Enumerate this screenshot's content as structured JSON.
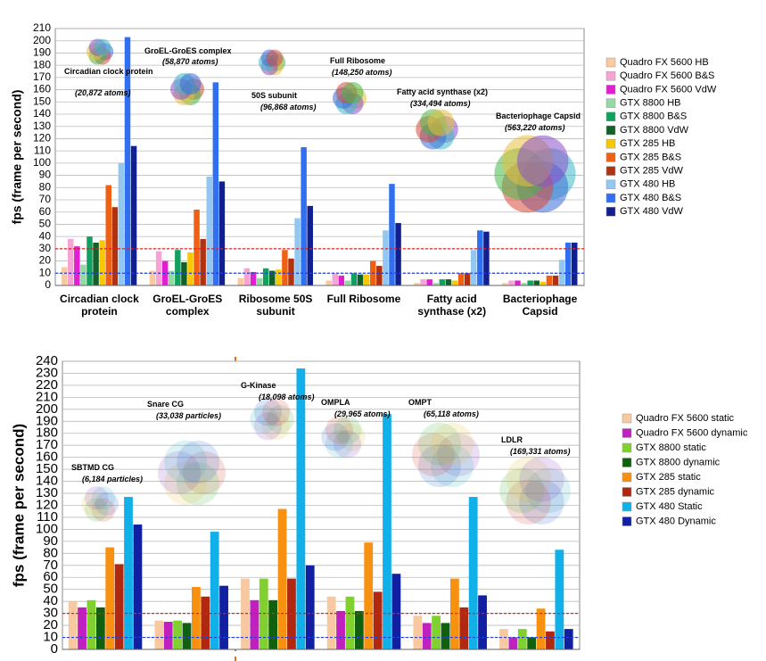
{
  "chart_data": [
    {
      "type": "bar",
      "y_label": "fps (frame per second)",
      "categories": [
        "Circadian clock protein",
        "GroEL-GroES complex",
        "Ribosome 50S subunit",
        "Full Ribosome",
        "Fatty acid synthase (x2)",
        "Bacteriophage Capsid"
      ],
      "series": [
        {
          "name": "Quadro FX 5600 HB",
          "color": "#f9c9a0",
          "values": [
            15,
            12,
            6,
            4,
            2,
            2
          ]
        },
        {
          "name": "Quadro FX 5600 B&S",
          "color": "#f7a3d3",
          "values": [
            38,
            28,
            14,
            10,
            5,
            4
          ]
        },
        {
          "name": "Quadro FX 5600 VdW",
          "color": "#e020d0",
          "values": [
            32,
            20,
            11,
            8,
            5,
            4
          ]
        },
        {
          "name": "GTX 8800 HB",
          "color": "#94d8a4",
          "values": [
            17,
            12,
            6,
            4,
            2,
            2
          ]
        },
        {
          "name": "GTX 8800 B&S",
          "color": "#12a05e",
          "values": [
            40,
            29,
            14,
            10,
            5,
            4
          ]
        },
        {
          "name": "GTX 8800 VdW",
          "color": "#12602a",
          "values": [
            35,
            19,
            12,
            9,
            5,
            4
          ]
        },
        {
          "name": "GTX 285 HB",
          "color": "#f8c800",
          "values": [
            37,
            27,
            13,
            9,
            4,
            3
          ]
        },
        {
          "name": "GTX 285 B&S",
          "color": "#f06012",
          "values": [
            82,
            62,
            29,
            20,
            10,
            8
          ]
        },
        {
          "name": "GTX 285 VdW",
          "color": "#b23210",
          "values": [
            64,
            38,
            22,
            16,
            10,
            8
          ]
        },
        {
          "name": "GTX 480 HB",
          "color": "#92c8f0",
          "values": [
            100,
            89,
            55,
            45,
            29,
            21
          ]
        },
        {
          "name": "GTX 480 B&S",
          "color": "#3070f0",
          "values": [
            203,
            166,
            113,
            83,
            45,
            35
          ]
        },
        {
          "name": "GTX 480 VdW",
          "color": "#102090",
          "values": [
            114,
            85,
            65,
            51,
            44,
            35
          ]
        }
      ],
      "ylim": [
        0,
        210
      ],
      "yticks": [
        0,
        10,
        20,
        30,
        40,
        50,
        60,
        70,
        80,
        90,
        100,
        110,
        120,
        130,
        140,
        150,
        160,
        170,
        180,
        190,
        200,
        210
      ],
      "grid": true,
      "reference_lines": [
        {
          "value": 30,
          "color": "#e02020"
        },
        {
          "value": 10,
          "color": "#2040e0"
        }
      ],
      "annotations": [
        {
          "label": "Circadian clock protein",
          "detail": "(20,872 atoms)"
        },
        {
          "label": "GroEL-GroES complex",
          "detail": "(58,870 atoms)"
        },
        {
          "label": "50S subunit",
          "detail": "(96,868 atoms)"
        },
        {
          "label": "Full Ribosome",
          "detail": "(148,250 atoms)"
        },
        {
          "label": "Fatty acid synthase (x2)",
          "detail": "(334,494 atoms)"
        },
        {
          "label": "Bacteriophage Capsid",
          "detail": "(563,220 atoms)"
        }
      ]
    },
    {
      "type": "bar",
      "y_label": "fps (frame per second)",
      "categories": [
        null,
        null,
        null,
        null,
        null,
        null
      ],
      "series": [
        {
          "name": "Quadro FX 5600 static",
          "color": "#f8c8a0",
          "values": [
            40,
            24,
            59,
            44,
            28,
            17
          ]
        },
        {
          "name": "Quadro FX 5600 dynamic",
          "color": "#c020c0",
          "values": [
            35,
            23,
            41,
            32,
            22,
            10
          ]
        },
        {
          "name": "GTX 8800 static",
          "color": "#80d030",
          "values": [
            41,
            24,
            59,
            44,
            28,
            17
          ]
        },
        {
          "name": "GTX 8800 dynamic",
          "color": "#106010",
          "values": [
            35,
            22,
            41,
            32,
            22,
            10
          ]
        },
        {
          "name": "GTX 285 static",
          "color": "#f89010",
          "values": [
            85,
            52,
            117,
            89,
            59,
            34
          ]
        },
        {
          "name": "GTX 285 dynamic",
          "color": "#b02810",
          "values": [
            71,
            44,
            59,
            48,
            35,
            15
          ]
        },
        {
          "name": "GTX 480 Static",
          "color": "#12b0e8",
          "values": [
            127,
            98,
            234,
            196,
            127,
            83
          ]
        },
        {
          "name": "GTX 480 Dynamic",
          "color": "#1020a0",
          "values": [
            104,
            53,
            70,
            63,
            45,
            17
          ]
        }
      ],
      "ylim": [
        0,
        240
      ],
      "yticks": [
        0,
        10,
        20,
        30,
        40,
        50,
        60,
        70,
        80,
        90,
        100,
        110,
        120,
        130,
        140,
        150,
        160,
        170,
        180,
        190,
        200,
        210,
        220,
        230,
        240
      ],
      "grid": true,
      "reference_lines": [
        {
          "value": 30,
          "color": "#e02020"
        },
        {
          "value": 10,
          "color": "#2040e0"
        }
      ],
      "annotations": [
        {
          "label": "SBTMD CG",
          "detail": "(6,184 particles)"
        },
        {
          "label": "Snare CG",
          "detail": "(33,038 particles)"
        },
        {
          "label": "G-Kinase",
          "detail": "(18,098 atoms)"
        },
        {
          "label": "OMPLA",
          "detail": "(29,965 atoms)"
        },
        {
          "label": "OMPT",
          "detail": "(65,118 atoms)"
        },
        {
          "label": "LDLR",
          "detail": "(169,331 atoms)"
        }
      ]
    }
  ]
}
